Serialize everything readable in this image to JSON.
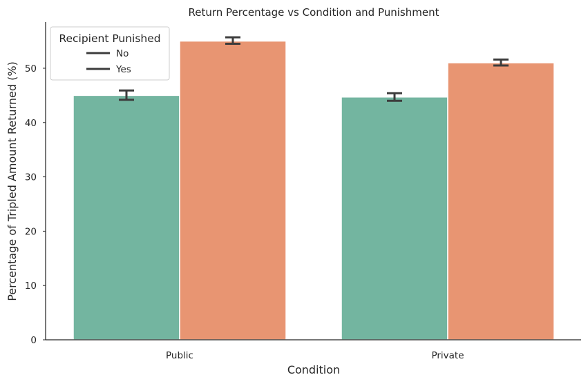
{
  "chart_data": {
    "type": "bar",
    "title": "Return Percentage vs Condition and Punishment",
    "xlabel": "Condition",
    "ylabel": "Percentage of Tripled Amount Returned (%)",
    "categories": [
      "Public",
      "Private"
    ],
    "series": [
      {
        "name": "No",
        "color": "#73b5a0",
        "values": [
          45.0,
          44.7
        ],
        "error_low": [
          44.2,
          44.0
        ],
        "error_high": [
          45.9,
          45.4
        ]
      },
      {
        "name": "Yes",
        "color": "#e89572",
        "values": [
          55.0,
          51.0
        ],
        "error_low": [
          54.5,
          50.5
        ],
        "error_high": [
          55.7,
          51.6
        ]
      }
    ],
    "ylim": [
      0,
      58.5
    ],
    "yticks": [
      0,
      10,
      20,
      30,
      40,
      50
    ],
    "legend": {
      "title": "Recipient Punished",
      "placement": "top-left"
    },
    "grid": false
  }
}
